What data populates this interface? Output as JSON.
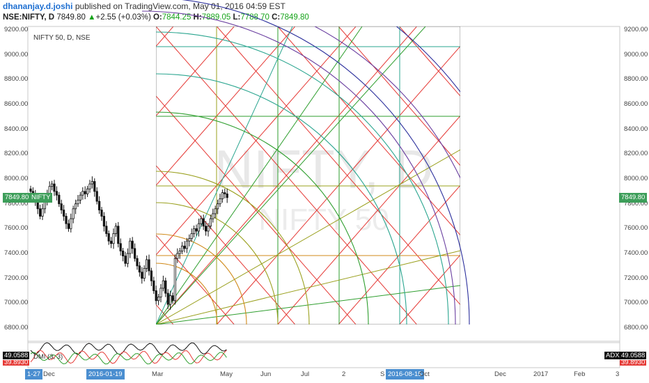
{
  "header": {
    "author": "dhananjay.d.joshi",
    "published": "published on TradingView.com, May 01, 2016 04:59 EST",
    "symbol": "NSE:NIFTY, D",
    "last": "7849.80",
    "change": "+2.55 (+0.03%)",
    "o_label": "O:",
    "o": "7844.25",
    "h_label": "H:",
    "h": "7889.05",
    "l_label": "L:",
    "l": "7788.70",
    "c_label": "C:",
    "c": "7849.80"
  },
  "chart_title": "NIFTY 50, D, NSE",
  "watermark": {
    "line1": "NIFTY, D",
    "line2": "NIFTY 50"
  },
  "price_axis": [
    "9200.00",
    "9000.00",
    "8800.00",
    "8600.00",
    "8400.00",
    "8200.00",
    "8000.00",
    "7800.00",
    "7600.00",
    "7400.00",
    "7200.00",
    "7000.00",
    "6800.00"
  ],
  "price_tag_left": {
    "value": "7849.80",
    "label": "NIFTY"
  },
  "price_tag_right": "7849.80",
  "time_axis": [
    "Dec",
    "Mar",
    "May",
    "Jun",
    "Jul",
    "2",
    "S",
    "Oct",
    "Dec",
    "2017",
    "Feb",
    "3"
  ],
  "time_highlights": [
    "1-27",
    "2016-01-19",
    "2016-08-15"
  ],
  "indicator": {
    "name": "DMI (3, 3)",
    "left_values": [
      "49.0588",
      "39.8930"
    ],
    "right_label": "ADX",
    "right_values": [
      "49.0588",
      "39.8930"
    ]
  },
  "colors": {
    "up": "#16a31a",
    "price_tag": "#3d9e5a",
    "grid_red": "#e53935",
    "grid_green": "#2e9e2e",
    "grid_olive": "#9aa01e",
    "grid_orange": "#d08a1a",
    "arc_teal": "#2aa58f",
    "arc_blue": "#2b2f9c",
    "arc_purple": "#6a3fa0",
    "candle": "#111111"
  },
  "chart_data": {
    "type": "candlestick",
    "symbol": "NSE:NIFTY",
    "interval": "D",
    "ohlc_last": {
      "open": 7844.25,
      "high": 7889.05,
      "low": 7788.7,
      "close": 7849.8
    },
    "y_range": [
      6800,
      9200
    ],
    "approx_closes": [
      7900,
      7870,
      7820,
      7760,
      7700,
      7760,
      7830,
      7880,
      7940,
      7960,
      7900,
      7870,
      7800,
      7750,
      7700,
      7640,
      7600,
      7680,
      7760,
      7800,
      7830,
      7870,
      7900,
      7880,
      7920,
      7960,
      7980,
      7900,
      7820,
      7750,
      7700,
      7620,
      7560,
      7500,
      7480,
      7560,
      7620,
      7480,
      7420,
      7380,
      7320,
      7400,
      7500,
      7440,
      7360,
      7300,
      7250,
      7200,
      7280,
      7350,
      7260,
      7180,
      7100,
      7020,
      7050,
      7120,
      7180,
      7080,
      6990,
      7060,
      7020,
      7360,
      7400,
      7420,
      7460,
      7440,
      7500,
      7520,
      7560,
      7600,
      7580,
      7640,
      7680,
      7620,
      7580,
      7620,
      7680,
      7720,
      7760,
      7800,
      7840,
      7890,
      7880,
      7850
    ]
  }
}
